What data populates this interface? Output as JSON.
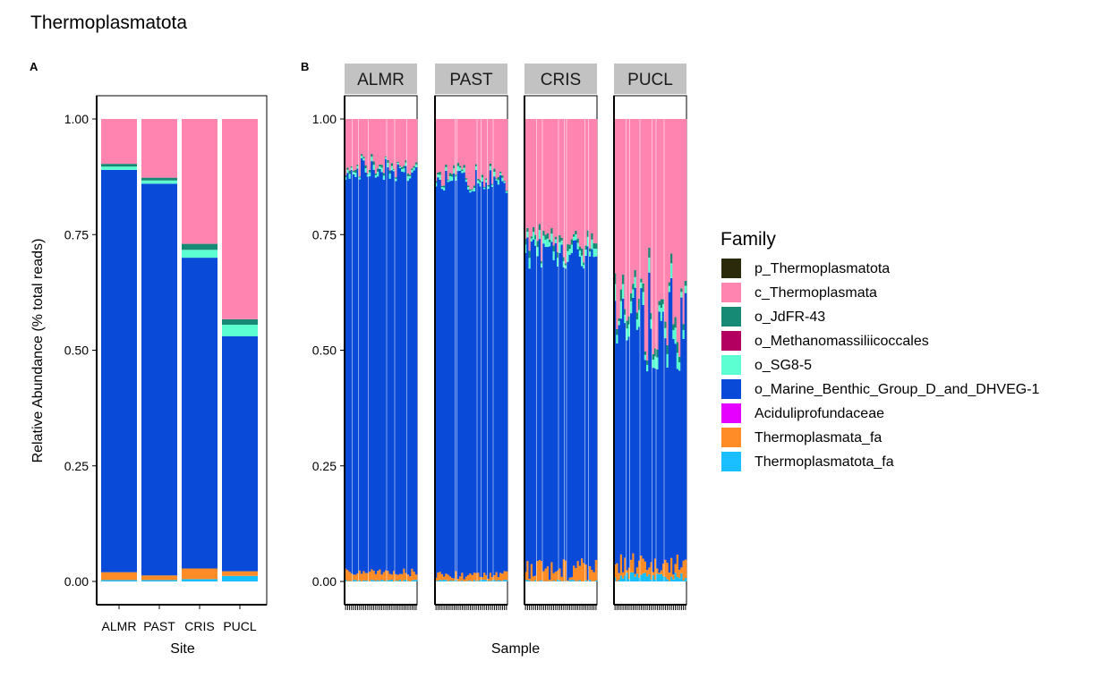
{
  "title": "Thermoplasmatota",
  "colors": {
    "p_Thermoplasmatota": "#2b2b0c",
    "c_Thermoplasmata": "#ff85b0",
    "o_JdFR-43": "#178a76",
    "o_Methanomassiliicoccales": "#b30060",
    "o_SG8-5": "#5cffd1",
    "o_Marine_Benthic_Group_D_and_DHVEG-1": "#0a4ad9",
    "Aciduliprofundaceae": "#e600ff",
    "Thermoplasmata_fa": "#ff8c26",
    "Thermoplasmatota_fa": "#1abfff",
    "strip": "#c2c2c2"
  },
  "chart_data": [
    {
      "tag": "A",
      "type": "bar",
      "stacked": true,
      "xlabel": "Site",
      "ylabel": "Relative Abundance (% total reads)",
      "ylim": [
        0,
        1
      ],
      "yticks": [
        "0.00",
        "0.25",
        "0.50",
        "0.75",
        "1.00"
      ],
      "categories": [
        "ALMR",
        "PAST",
        "CRIS",
        "PUCL"
      ],
      "series": [
        {
          "name": "Thermoplasmatota_fa",
          "values": [
            0.003,
            0.003,
            0.005,
            0.012
          ]
        },
        {
          "name": "Thermoplasmata_fa",
          "values": [
            0.017,
            0.01,
            0.023,
            0.01
          ]
        },
        {
          "name": "Aciduliprofundaceae",
          "values": [
            0.0,
            0.0,
            0.0,
            0.0
          ]
        },
        {
          "name": "o_Marine_Benthic_Group_D_and_DHVEG-1",
          "values": [
            0.87,
            0.847,
            0.672,
            0.508
          ]
        },
        {
          "name": "o_SG8-5",
          "values": [
            0.007,
            0.007,
            0.017,
            0.025
          ]
        },
        {
          "name": "o_Methanomassiliicoccales",
          "values": [
            0.0,
            0.0,
            0.0,
            0.0
          ]
        },
        {
          "name": "o_JdFR-43",
          "values": [
            0.006,
            0.006,
            0.013,
            0.012
          ]
        },
        {
          "name": "c_Thermoplasmata",
          "values": [
            0.097,
            0.127,
            0.27,
            0.433
          ]
        },
        {
          "name": "p_Thermoplasmatota",
          "values": [
            0.0,
            0.0,
            0.0,
            0.0
          ]
        }
      ]
    },
    {
      "tag": "B",
      "type": "bar",
      "stacked": true,
      "xlabel": "Sample",
      "ylabel": "",
      "ylim": [
        0,
        1
      ],
      "yticks": [
        "0.00",
        "0.25",
        "0.50",
        "0.75",
        "1.00"
      ],
      "facets": [
        {
          "label": "ALMR",
          "samples": 36,
          "bottom_level": 0.018,
          "top_level": 0.89,
          "teal_band": 0.014,
          "separators_after": [
            3,
            6,
            11,
            20,
            24,
            30
          ]
        },
        {
          "label": "PAST",
          "samples": 36,
          "bottom_level": 0.012,
          "top_level": 0.865,
          "teal_band": 0.014,
          "separators_after": [
            9,
            10,
            20,
            22,
            25,
            28
          ]
        },
        {
          "label": "CRIS",
          "samples": 36,
          "bottom_level": 0.025,
          "top_level": 0.71,
          "teal_band": 0.03,
          "separators_after": [
            5,
            8,
            16,
            19,
            20,
            29,
            31
          ]
        },
        {
          "label": "PUCL",
          "samples": 36,
          "bottom_level": 0.025,
          "top_level": 0.56,
          "teal_band": 0.05,
          "separators_after": [
            5,
            7,
            12,
            18,
            20,
            24
          ]
        }
      ]
    }
  ],
  "legend": {
    "title": "Family",
    "items": [
      {
        "label": "p_Thermoplasmatota",
        "color": "#2b2b0c"
      },
      {
        "label": "c_Thermoplasmata",
        "color": "#ff85b0"
      },
      {
        "label": "o_JdFR-43",
        "color": "#178a76"
      },
      {
        "label": "o_Methanomassiliicoccales",
        "color": "#b30060"
      },
      {
        "label": "o_SG8-5",
        "color": "#5cffd1"
      },
      {
        "label": "o_Marine_Benthic_Group_D_and_DHVEG-1",
        "color": "#0a4ad9"
      },
      {
        "label": "Aciduliprofundaceae",
        "color": "#e600ff"
      },
      {
        "label": "Thermoplasmata_fa",
        "color": "#ff8c26"
      },
      {
        "label": "Thermoplasmatota_fa",
        "color": "#1abfff"
      }
    ]
  }
}
